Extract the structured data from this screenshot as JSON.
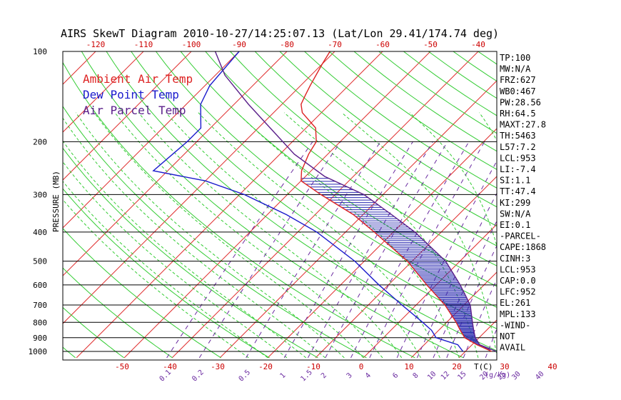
{
  "chart_data": {
    "type": "skewt",
    "title": "AIRS SkewT Diagram 2010-10-27/14:25:07.13 (Lat/Lon 29.41/174.74 deg)",
    "ylabel": "PRESSURE (MB)",
    "xlabel_bottom": "T(C)",
    "mixing_ratio_unit": "(g/kg)",
    "pressure_range": [
      1000,
      100
    ],
    "pressure_ticks": [
      100,
      200,
      300,
      400,
      500,
      600,
      700,
      800,
      900,
      1000
    ],
    "top_temp_ticks": [
      -120,
      -110,
      -100,
      -90,
      -80,
      -70,
      -60,
      -50,
      -40
    ],
    "bottom_temp_ticks": [
      -50,
      -40,
      -30,
      -20,
      -10,
      0,
      10,
      20,
      30,
      40
    ],
    "mixing_ratio_ticks": [
      "0.1",
      "0.2",
      "0.5",
      "1",
      "1.5",
      "2",
      "3",
      "4",
      "6",
      "8",
      "10",
      "12",
      "15",
      "20",
      "25",
      "30",
      "40"
    ],
    "legend": [
      {
        "label": "Ambient Air Temp",
        "color": "#dd2222"
      },
      {
        "label": "Dew Point Temp",
        "color": "#1a1acc"
      },
      {
        "label": "Air Parcel Temp",
        "color": "#5a1f8a"
      }
    ],
    "series": [
      {
        "name": "Ambient Air Temp",
        "color": "#dd2222",
        "points": [
          [
            1000,
            25.5
          ],
          [
            950,
            21
          ],
          [
            900,
            17
          ],
          [
            850,
            14.5
          ],
          [
            800,
            12
          ],
          [
            700,
            6
          ],
          [
            600,
            -2
          ],
          [
            500,
            -11
          ],
          [
            400,
            -24
          ],
          [
            350,
            -32
          ],
          [
            300,
            -43
          ],
          [
            270,
            -50
          ],
          [
            250,
            -52
          ],
          [
            220,
            -54
          ],
          [
            200,
            -55
          ],
          [
            180,
            -58
          ],
          [
            160,
            -64
          ],
          [
            150,
            -66
          ],
          [
            140,
            -67
          ],
          [
            130,
            -68
          ],
          [
            110,
            -70
          ],
          [
            100,
            -71
          ]
        ]
      },
      {
        "name": "Dew Point Temp",
        "color": "#1a1acc",
        "points": [
          [
            1000,
            19.5
          ],
          [
            950,
            17
          ],
          [
            900,
            11
          ],
          [
            850,
            8.5
          ],
          [
            800,
            5
          ],
          [
            700,
            -3
          ],
          [
            600,
            -12
          ],
          [
            500,
            -22
          ],
          [
            400,
            -36
          ],
          [
            350,
            -46
          ],
          [
            300,
            -59
          ],
          [
            270,
            -70
          ],
          [
            250,
            -83
          ],
          [
            200,
            -82
          ],
          [
            180,
            -82
          ],
          [
            150,
            -87
          ],
          [
            130,
            -89
          ],
          [
            100,
            -90
          ]
        ]
      },
      {
        "name": "Air Parcel Temp",
        "color": "#5a1f8a",
        "points": [
          [
            1000,
            26.5
          ],
          [
            950,
            21.6
          ],
          [
            900,
            19.2
          ],
          [
            850,
            17.3
          ],
          [
            800,
            15.4
          ],
          [
            700,
            11.3
          ],
          [
            600,
            5
          ],
          [
            500,
            -3
          ],
          [
            400,
            -15.5
          ],
          [
            350,
            -24
          ],
          [
            300,
            -34
          ],
          [
            261,
            -46
          ],
          [
            220,
            -57
          ],
          [
            200,
            -62
          ],
          [
            150,
            -77
          ],
          [
            120,
            -88
          ],
          [
            100,
            -95
          ]
        ]
      }
    ],
    "stats": [
      "TP:100",
      "MW:N/A",
      "FRZ:627",
      "WB0:467",
      "PW:28.56",
      "RH:64.5",
      "MAXT:27.8",
      "TH:5463",
      "L57:7.2",
      "LCL:953",
      "LI:-7.4",
      "SI:1.1",
      "TT:47.4",
      "KI:299",
      "SW:N/A",
      "EI:0.1",
      "-PARCEL-",
      "CAPE:1868",
      "CINH:3",
      "LCL:953",
      "CAP:0.0",
      "LFC:952",
      "EL:261",
      "MPL:133",
      "-WIND-",
      "NOT",
      "AVAIL"
    ]
  }
}
